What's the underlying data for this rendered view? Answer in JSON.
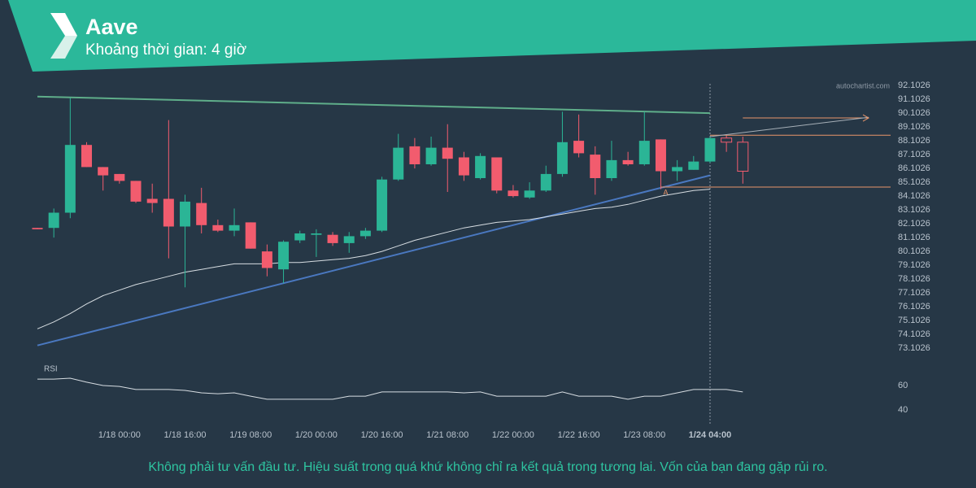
{
  "header": {
    "title": "Aave",
    "subtitle": "Khoảng thời gian: 4 giờ"
  },
  "chart_data": {
    "type": "candlestick",
    "watermark": "autochartist.com",
    "categories": [
      null,
      null,
      null,
      null,
      null,
      "1/18 00:00",
      null,
      null,
      null,
      "1/18 16:00",
      null,
      null,
      null,
      "1/19 08:00",
      null,
      null,
      null,
      "1/20 00:00",
      null,
      null,
      null,
      "1/20 16:00",
      null,
      null,
      null,
      "1/21 08:00",
      null,
      null,
      null,
      "1/22 00:00",
      null,
      null,
      null,
      "1/22 16:00",
      null,
      null,
      null,
      "1/23 08:00",
      null,
      null,
      null,
      "1/24 04:00"
    ],
    "candles": {
      "open": [
        81.8,
        81.8,
        82.9,
        87.8,
        86.2,
        85.7,
        85.2,
        83.9,
        83.9,
        81.9,
        83.6,
        82.0,
        81.6,
        82.2,
        80.1,
        78.8,
        80.9,
        81.3,
        81.3,
        80.7,
        81.2,
        81.6,
        85.3,
        87.7,
        86.4,
        87.6,
        86.9,
        85.4,
        86.9,
        84.5,
        84.0,
        84.5,
        85.7,
        88.1,
        87.1,
        85.4,
        86.7,
        86.4,
        88.2,
        85.9,
        86.0,
        86.6
      ],
      "high": [
        81.8,
        83.2,
        91.2,
        88.0,
        86.2,
        85.7,
        85.2,
        85.0,
        89.6,
        84.2,
        84.7,
        82.4,
        83.2,
        82.2,
        80.6,
        80.9,
        81.6,
        81.7,
        81.5,
        81.5,
        81.8,
        85.5,
        88.6,
        88.3,
        88.4,
        89.3,
        87.3,
        87.2,
        86.9,
        84.9,
        85.1,
        86.3,
        90.2,
        90.0,
        87.7,
        88.1,
        87.3,
        90.2,
        88.2,
        86.7,
        87.0,
        88.4
      ],
      "low": [
        81.7,
        81.1,
        82.5,
        86.2,
        84.5,
        85.0,
        83.6,
        82.9,
        79.6,
        77.5,
        81.4,
        81.5,
        81.2,
        80.3,
        78.3,
        77.8,
        80.7,
        79.7,
        80.5,
        80.0,
        81.0,
        81.5,
        85.2,
        86.1,
        86.3,
        84.4,
        85.2,
        85.3,
        84.3,
        84.0,
        83.9,
        84.4,
        85.5,
        86.9,
        84.2,
        85.2,
        86.3,
        86.3,
        84.6,
        85.2,
        86.0,
        86.5
      ],
      "close": [
        81.7,
        82.9,
        87.8,
        86.2,
        85.6,
        85.2,
        83.7,
        83.6,
        81.9,
        83.7,
        82.0,
        81.6,
        82.0,
        80.3,
        78.9,
        80.8,
        81.4,
        81.4,
        80.7,
        81.2,
        81.6,
        85.3,
        87.6,
        86.4,
        87.6,
        86.8,
        85.6,
        87.0,
        84.5,
        84.1,
        84.5,
        85.7,
        88.0,
        87.2,
        85.4,
        86.7,
        86.4,
        88.1,
        85.9,
        86.2,
        86.6,
        88.3
      ]
    },
    "projected_candles": {
      "open": [
        88.3,
        88.0
      ],
      "high": [
        88.5,
        88.4
      ],
      "low": [
        87.3,
        85.0
      ],
      "close": [
        88.0,
        85.9
      ]
    },
    "moving_average": [
      74.5,
      75.0,
      75.6,
      76.3,
      76.9,
      77.3,
      77.7,
      78.0,
      78.3,
      78.6,
      78.8,
      79.0,
      79.2,
      79.2,
      79.2,
      79.3,
      79.3,
      79.4,
      79.5,
      79.6,
      79.8,
      80.1,
      80.5,
      80.9,
      81.2,
      81.5,
      81.8,
      82.0,
      82.2,
      82.3,
      82.4,
      82.6,
      82.8,
      83.0,
      83.2,
      83.3,
      83.5,
      83.8,
      84.1,
      84.3,
      84.5,
      84.6
    ],
    "up_color": "#2bb596",
    "down_color": "#f25c6e",
    "resistance": [
      91.3,
      90.1
    ],
    "support": [
      73.3,
      85.6
    ],
    "levels": [
      88.5,
      84.75
    ],
    "target": 89.75,
    "projection": [
      88.4,
      89.8
    ],
    "pattern_label": "A",
    "ylim": [
      72.4,
      92.4
    ],
    "yticks": [
      92.1026,
      91.1026,
      90.1026,
      89.1026,
      88.1026,
      87.1026,
      86.1026,
      85.1026,
      84.1026,
      83.1026,
      82.1026,
      81.1026,
      80.1026,
      79.1026,
      78.1026,
      77.1026,
      76.1026,
      75.1026,
      74.1026,
      73.1026
    ],
    "rsi": {
      "label": "RSI",
      "ylim": [
        30,
        80
      ],
      "yticks": [
        60,
        40
      ],
      "values": [
        65.3,
        65.3,
        66.0,
        62.7,
        60.0,
        59.3,
        56.7,
        56.7,
        56.7,
        56.0,
        54.0,
        53.3,
        54.0,
        51.3,
        48.7,
        48.7,
        48.7,
        48.7,
        48.7,
        51.3,
        51.3,
        54.7,
        54.7,
        54.7,
        54.7,
        54.7,
        54.0,
        54.7,
        51.3,
        51.3,
        51.3,
        51.3,
        54.7,
        51.3,
        51.3,
        51.3,
        48.7,
        51.3,
        51.3,
        54.0,
        56.7,
        56.7,
        56.7,
        54.7
      ]
    }
  },
  "footer": {
    "disclaimer": "Không phải tư vấn đầu tư. Hiệu suất trong quá khứ không chỉ ra kết quả trong tương lai. Vốn của bạn đang gặp rủi ro."
  }
}
